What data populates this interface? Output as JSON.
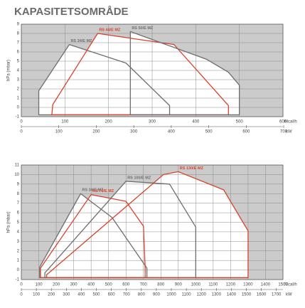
{
  "title": "KAPASITETSOMRÅDE",
  "chart_data": [
    {
      "type": "line",
      "y_label": "hPa (mbar)",
      "x_unit": "Mcal/h",
      "x2_unit": "kW",
      "xlim": [
        0,
        600
      ],
      "xticks": [
        0,
        100,
        200,
        300,
        400,
        500,
        600
      ],
      "x2lim": [
        0,
        698
      ],
      "x2ticks": [
        0,
        100,
        200,
        300,
        400,
        500,
        600,
        700
      ],
      "ylim": [
        -1,
        9
      ],
      "yticks": [
        -1,
        0,
        1,
        2,
        3,
        4,
        5,
        6,
        7,
        8,
        9
      ],
      "grid": true,
      "series": [
        {
          "name": "RS 34/E MZ",
          "color": "#6e6e6e",
          "x": [
            40,
            40,
            110,
            240,
            340,
            340
          ],
          "values": [
            -0.8,
            1.8,
            6.8,
            4.8,
            0.2,
            -0.8
          ]
        },
        {
          "name": "RS 44/E MZ",
          "color": "#d9412b",
          "x": [
            70,
            72,
            175,
            350,
            475,
            475
          ],
          "values": [
            -0.8,
            0.3,
            8,
            6.8,
            0.2,
            -0.8
          ]
        },
        {
          "name": "RS 50/E MZ",
          "color": "#6e6e6e",
          "x": [
            250,
            250,
            425,
            475,
            500,
            500
          ],
          "values": [
            -0.8,
            8.2,
            5.2,
            3.8,
            2.4,
            -0.8
          ]
        }
      ]
    },
    {
      "type": "line",
      "y_label": "hPa (mbar)",
      "x_unit": "Mcal/h",
      "x2_unit": "kW",
      "xlim": [
        0,
        1500
      ],
      "xticks": [
        0,
        100,
        200,
        300,
        400,
        500,
        600,
        700,
        800,
        900,
        1000,
        1100,
        1200,
        1300,
        1400,
        1500
      ],
      "x2lim": [
        0,
        1744
      ],
      "x2ticks": [
        0,
        100,
        200,
        300,
        400,
        500,
        600,
        700,
        800,
        900,
        1000,
        1100,
        1200,
        1300,
        1400,
        1500,
        1600,
        1700
      ],
      "ylim": [
        -1,
        11
      ],
      "yticks": [
        -1,
        0,
        1,
        2,
        3,
        4,
        5,
        6,
        7,
        8,
        9,
        10,
        11
      ],
      "grid": true,
      "series": [
        {
          "name": "RS 34/E MZ",
          "color": "#6e6e6e",
          "x": [
            105,
            105,
            340,
            520,
            720,
            720
          ],
          "values": [
            -0.8,
            0.3,
            8,
            5.5,
            0.2,
            -0.8
          ]
        },
        {
          "name": "RS 70/E MZ",
          "color": "#d9412b",
          "x": [
            110,
            110,
            400,
            600,
            700,
            710,
            710
          ],
          "values": [
            -0.8,
            0.2,
            7.9,
            7.2,
            4.6,
            0.2,
            -0.8
          ]
        },
        {
          "name": "RS 100/E MZ",
          "color": "#6e6e6e",
          "x": [
            135,
            135,
            600,
            850,
            1000,
            1000
          ],
          "values": [
            -0.8,
            -0.3,
            9.3,
            9,
            4.5,
            -0.8
          ]
        },
        {
          "name": "RS 130/E MZ",
          "color": "#d9412b",
          "x": [
            145,
            145,
            815,
            900,
            1160,
            1300,
            1300
          ],
          "values": [
            -0.8,
            -0.5,
            10,
            10.3,
            8.4,
            4.1,
            -0.8
          ]
        }
      ]
    }
  ]
}
